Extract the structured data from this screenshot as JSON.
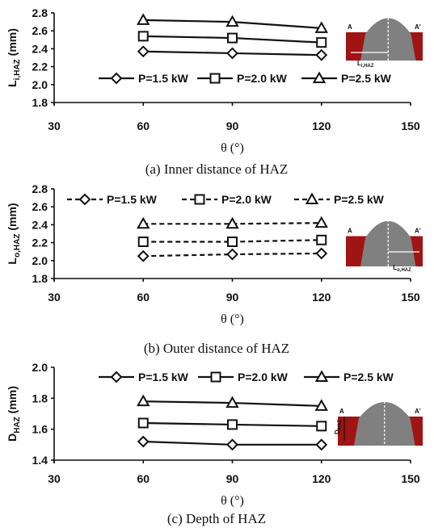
{
  "chart_data": [
    {
      "type": "line",
      "caption": "(a) Inner distance of HAZ",
      "ylabel_main": "L",
      "ylabel_sub": "i,HAZ",
      "ylabel_unit": " (mm)",
      "xlabel": "θ (°)",
      "xlim": [
        30,
        150
      ],
      "xticks": [
        "30",
        "60",
        "90",
        "120",
        "150"
      ],
      "ylim": [
        1.8,
        2.8
      ],
      "yticks": [
        "1.8",
        "2.0",
        "2.2",
        "2.4",
        "2.6",
        "2.8"
      ],
      "x": [
        60,
        90,
        120
      ],
      "series": [
        {
          "name": "P=1.5 kW",
          "marker": "diamond",
          "dash": "solid",
          "values": [
            2.37,
            2.35,
            2.33
          ]
        },
        {
          "name": "P=2.0 kW",
          "marker": "square",
          "dash": "solid",
          "values": [
            2.54,
            2.52,
            2.47
          ]
        },
        {
          "name": "P=2.5 kW",
          "marker": "triangle",
          "dash": "solid",
          "values": [
            2.72,
            2.7,
            2.63
          ]
        }
      ],
      "legend": "lower",
      "grid": false,
      "inset": {
        "left_label": "A",
        "right_label": "A'",
        "dim_main": "L",
        "dim_sub": "i,HAZ"
      }
    },
    {
      "type": "line",
      "caption": "(b) Outer distance of HAZ",
      "ylabel_main": "L",
      "ylabel_sub": "o,HAZ",
      "ylabel_unit": " (mm)",
      "xlabel": "θ (°)",
      "xlim": [
        30,
        150
      ],
      "xticks": [
        "30",
        "60",
        "90",
        "120",
        "150"
      ],
      "ylim": [
        1.8,
        2.8
      ],
      "yticks": [
        "1.8",
        "2.0",
        "2.2",
        "2.4",
        "2.6",
        "2.8"
      ],
      "x": [
        60,
        90,
        120
      ],
      "series": [
        {
          "name": "P=1.5 kW",
          "marker": "diamond",
          "dash": "dashed",
          "values": [
            2.05,
            2.07,
            2.08
          ]
        },
        {
          "name": "P=2.0 kW",
          "marker": "square",
          "dash": "dashed",
          "values": [
            2.21,
            2.21,
            2.23
          ]
        },
        {
          "name": "P=2.5 kW",
          "marker": "triangle",
          "dash": "dashed",
          "values": [
            2.41,
            2.41,
            2.42
          ]
        }
      ],
      "legend": "top",
      "grid": false,
      "inset": {
        "left_label": "A",
        "right_label": "A'",
        "dim_main": "L",
        "dim_sub": "o,HAZ"
      }
    },
    {
      "type": "line",
      "caption": "(c) Depth of HAZ",
      "ylabel_main": "D",
      "ylabel_sub": "HAZ",
      "ylabel_unit": " (mm)",
      "xlabel": "θ (°)",
      "xlim": [
        30,
        150
      ],
      "xticks": [
        "30",
        "60",
        "90",
        "120",
        "150"
      ],
      "ylim": [
        1.4,
        2.0
      ],
      "yticks": [
        "1.4",
        "1.6",
        "1.8",
        "2.0"
      ],
      "x": [
        60,
        90,
        120
      ],
      "series": [
        {
          "name": "P=1.5 kW",
          "marker": "diamond",
          "dash": "solid",
          "values": [
            1.52,
            1.5,
            1.5
          ]
        },
        {
          "name": "P=2.0 kW",
          "marker": "square",
          "dash": "solid",
          "values": [
            1.64,
            1.63,
            1.62
          ]
        },
        {
          "name": "P=2.5 kW",
          "marker": "triangle",
          "dash": "solid",
          "values": [
            1.78,
            1.77,
            1.75
          ]
        }
      ],
      "legend": "top",
      "grid": false,
      "inset": {
        "left_label": "A",
        "right_label": "A'",
        "dim_main": "D",
        "dim_sub": "HAZ"
      }
    }
  ],
  "colors": {
    "ink": "#111111",
    "bead": "#808080",
    "base_metal": "#a01414"
  }
}
